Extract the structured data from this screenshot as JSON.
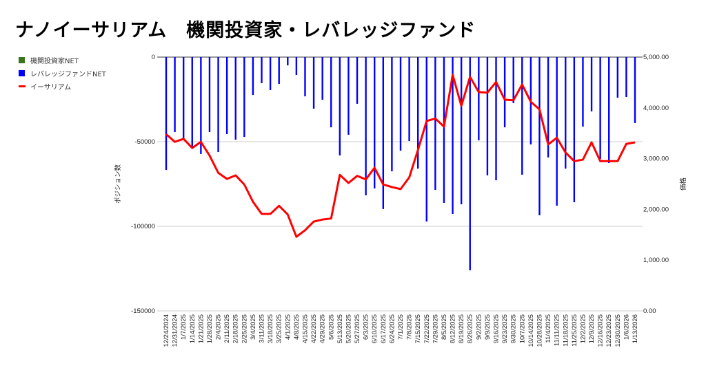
{
  "chart_data": {
    "type": "bar+line",
    "title": "ナノイーサリアム　機関投資家・レバレッジファンド",
    "ylabel_left": "ポジション数",
    "ylabel_right": "価格",
    "ylim_left": [
      -150000,
      0
    ],
    "ylim_right": [
      0,
      5000
    ],
    "left_ticks": [
      "0",
      "-50000",
      "-100000",
      "-150000"
    ],
    "left_tick_values": [
      0,
      -50000,
      -100000,
      -150000
    ],
    "right_ticks": [
      "5,000.00",
      "4,000.00",
      "3,000.00",
      "2,000.00",
      "1,000.00",
      "0.00"
    ],
    "right_tick_values": [
      5000,
      4000,
      3000,
      2000,
      1000,
      0
    ],
    "grid": true,
    "legend_position": "top-left",
    "categories": [
      "12/24/2024",
      "12/31/2024",
      "1/7/2025",
      "1/14/2025",
      "1/21/2025",
      "1/28/2025",
      "2/4/2025",
      "2/11/2025",
      "2/18/2025",
      "2/25/2025",
      "3/4/2025",
      "3/11/2025",
      "3/18/2025",
      "3/25/2025",
      "4/1/2025",
      "4/8/2025",
      "4/15/2025",
      "4/22/2025",
      "4/29/2025",
      "5/6/2025",
      "5/13/2025",
      "5/20/2025",
      "5/27/2025",
      "6/3/2025",
      "6/10/2025",
      "6/17/2025",
      "6/24/2025",
      "7/1/2025",
      "7/8/2025",
      "7/15/2025",
      "7/22/2025",
      "7/29/2025",
      "8/5/2025",
      "8/12/2025",
      "8/19/2025",
      "8/26/2025",
      "9/2/2025",
      "9/9/2025",
      "9/16/2025",
      "9/23/2025",
      "9/30/2025",
      "10/7/2025",
      "10/14/2025",
      "10/28/2025",
      "11/4/2025",
      "11/11/2025",
      "11/18/2025",
      "11/25/2025",
      "12/2/2025",
      "12/9/2025",
      "12/16/2025",
      "12/23/2025",
      "12/30/2025",
      "1/6/2026",
      "1/13/2026"
    ],
    "series": [
      {
        "name": "機関投資家NET",
        "type": "bar",
        "axis": "left",
        "color": "#38761d",
        "values": [
          0,
          0,
          0,
          0,
          0,
          0,
          0,
          0,
          0,
          0,
          0,
          0,
          0,
          0,
          0,
          0,
          0,
          0,
          0,
          0,
          0,
          0,
          0,
          0,
          0,
          0,
          0,
          0,
          0,
          0,
          0,
          0,
          0,
          0,
          0,
          0,
          0,
          0,
          0,
          0,
          0,
          0,
          0,
          0,
          0,
          0,
          0,
          0,
          0,
          0,
          0,
          0,
          0,
          0,
          0
        ]
      },
      {
        "name": "レバレッジファンドNET",
        "type": "bar",
        "axis": "left",
        "color": "#0000ff",
        "values": [
          -66700,
          -44300,
          -48800,
          -54000,
          -57300,
          -44300,
          -56100,
          -45500,
          -48800,
          -47200,
          -22400,
          -15400,
          -19500,
          -15900,
          -4900,
          -10600,
          -23200,
          -30500,
          -25200,
          -41500,
          -58100,
          -45900,
          -27600,
          -81700,
          -77600,
          -89800,
          -67500,
          -55300,
          -49600,
          -65900,
          -97200,
          -78500,
          -86200,
          -92700,
          -87000,
          -126000,
          -49200,
          -69900,
          -72800,
          -41500,
          -27200,
          -69500,
          -51600,
          -93500,
          -59300,
          -87800,
          -65900,
          -85800,
          -41100,
          -32100,
          -60200,
          -62600,
          -24000,
          -23600,
          -39000
        ]
      },
      {
        "name": "イーサリアム",
        "type": "line",
        "axis": "right",
        "color": "#ff0000",
        "values": [
          3480,
          3330,
          3390,
          3210,
          3330,
          3060,
          2720,
          2600,
          2670,
          2490,
          2150,
          1910,
          1910,
          2070,
          1900,
          1460,
          1590,
          1760,
          1800,
          1820,
          2680,
          2520,
          2660,
          2590,
          2820,
          2490,
          2440,
          2400,
          2630,
          3170,
          3740,
          3790,
          3630,
          4650,
          4040,
          4610,
          4310,
          4300,
          4510,
          4160,
          4150,
          4460,
          4120,
          3970,
          3280,
          3410,
          3120,
          2950,
          2980,
          3320,
          2950,
          2950,
          2950,
          3290,
          3320
        ]
      }
    ]
  }
}
